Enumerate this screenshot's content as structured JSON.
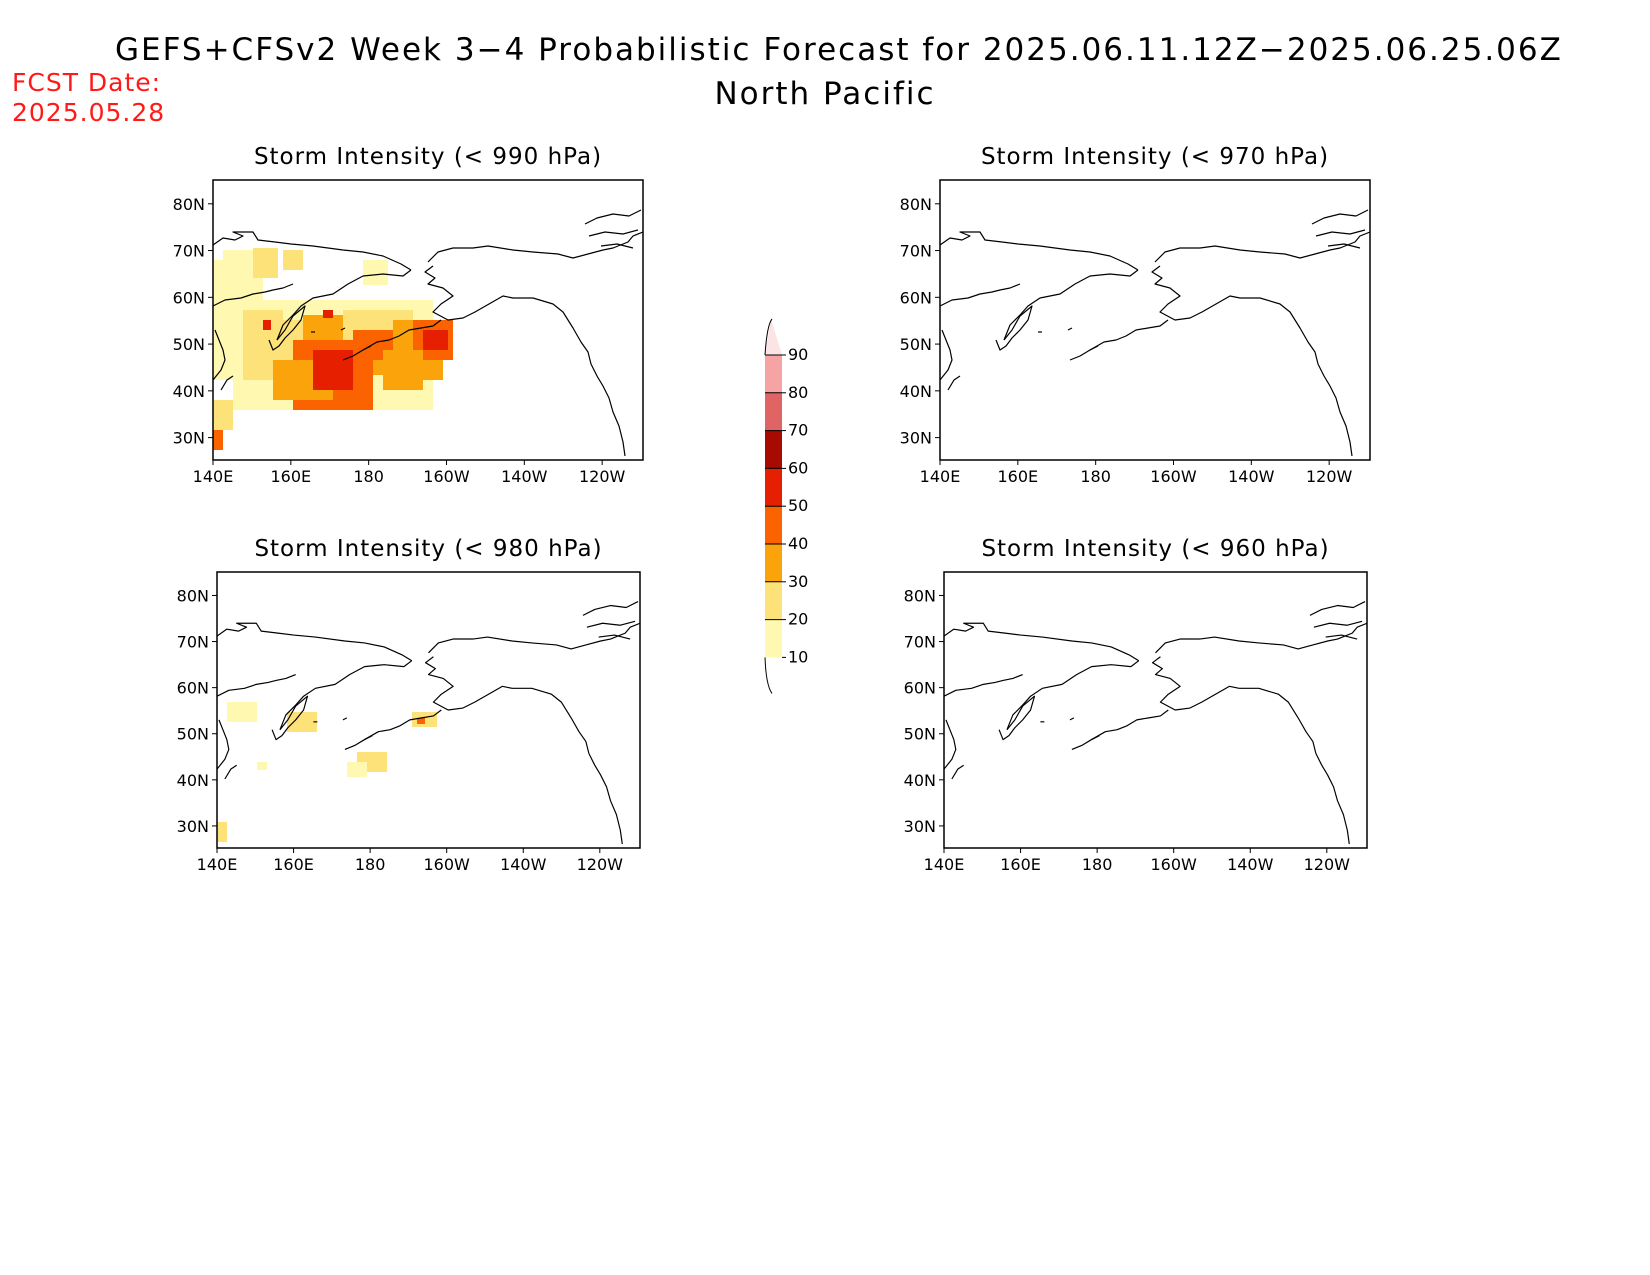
{
  "header": {
    "title": "GEFS+CFSv2 Week 3−4 Probabilistic Forecast for 2025.06.11.12Z−2025.06.25.06Z",
    "subtitle": "North Pacific",
    "fcst_label": "FCST Date:",
    "fcst_date": "2025.05.28"
  },
  "panels": [
    {
      "title": "Storm Intensity (< 990 hPa)"
    },
    {
      "title": "Storm Intensity (< 970 hPa)"
    },
    {
      "title": "Storm Intensity (< 980 hPa)"
    },
    {
      "title": "Storm Intensity (< 960 hPa)"
    }
  ],
  "axes": {
    "lat_labels": [
      "80N",
      "70N",
      "60N",
      "50N",
      "40N",
      "30N"
    ],
    "lon_labels": [
      "140E",
      "160E",
      "180",
      "160W",
      "140W",
      "120W"
    ]
  },
  "colorbar": {
    "labels": [
      "10",
      "20",
      "30",
      "40",
      "50",
      "60",
      "70",
      "80",
      "90"
    ],
    "colors": [
      "#fff8b0",
      "#fde27a",
      "#fba30a",
      "#fb6200",
      "#e61f00",
      "#a60a00",
      "#df6463",
      "#f5a3a3",
      "#fde4e4"
    ]
  }
}
